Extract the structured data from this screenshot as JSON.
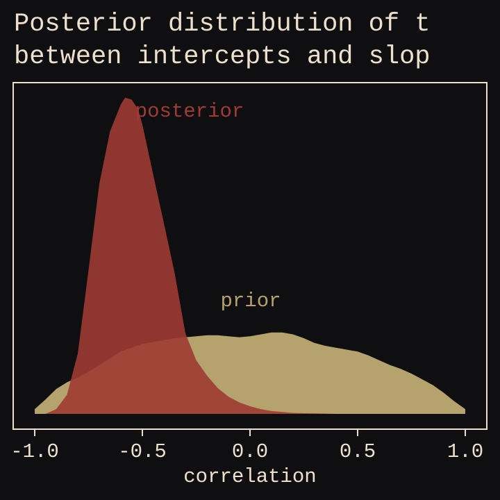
{
  "chart_data": {
    "type": "area",
    "title_lines": [
      "Posterior distribution of t",
      "between intercepts and slop"
    ],
    "xlabel": "correlation",
    "ylabel": "",
    "xlim": [
      -1.0,
      1.0
    ],
    "ylim": [
      0,
      3.3
    ],
    "xticks": [
      -1.0,
      -0.5,
      0.0,
      0.5,
      1.0
    ],
    "xtick_labels": [
      "-1.0",
      "-0.5",
      "0.0",
      "0.5",
      "1.0"
    ],
    "grid": false,
    "series": [
      {
        "name": "prior",
        "color": "#b5a26c",
        "x": [
          -1.0,
          -0.95,
          -0.9,
          -0.85,
          -0.8,
          -0.75,
          -0.7,
          -0.65,
          -0.6,
          -0.55,
          -0.5,
          -0.45,
          -0.4,
          -0.35,
          -0.3,
          -0.25,
          -0.2,
          -0.15,
          -0.1,
          -0.05,
          0.0,
          0.05,
          0.1,
          0.15,
          0.2,
          0.25,
          0.3,
          0.35,
          0.4,
          0.45,
          0.5,
          0.55,
          0.6,
          0.65,
          0.7,
          0.75,
          0.8,
          0.85,
          0.9,
          0.95,
          1.0
        ],
        "y": [
          0.05,
          0.15,
          0.26,
          0.33,
          0.38,
          0.44,
          0.51,
          0.58,
          0.65,
          0.69,
          0.73,
          0.75,
          0.77,
          0.79,
          0.8,
          0.81,
          0.82,
          0.82,
          0.81,
          0.8,
          0.81,
          0.83,
          0.85,
          0.85,
          0.83,
          0.79,
          0.74,
          0.71,
          0.69,
          0.67,
          0.65,
          0.61,
          0.56,
          0.51,
          0.47,
          0.42,
          0.36,
          0.3,
          0.22,
          0.13,
          0.05
        ]
      },
      {
        "name": "posterior",
        "color": "#9f3b34",
        "x": [
          -1.0,
          -0.95,
          -0.9,
          -0.85,
          -0.8,
          -0.75,
          -0.7,
          -0.65,
          -0.6,
          -0.58,
          -0.55,
          -0.52,
          -0.5,
          -0.45,
          -0.4,
          -0.35,
          -0.3,
          -0.25,
          -0.2,
          -0.15,
          -0.1,
          -0.05,
          0.0,
          0.05,
          0.1,
          0.15,
          0.2,
          0.3,
          0.4,
          0.5,
          0.6,
          0.8,
          1.0
        ],
        "y": [
          0.0,
          0.0,
          0.05,
          0.2,
          0.63,
          1.5,
          2.4,
          2.95,
          3.23,
          3.3,
          3.28,
          3.18,
          3.02,
          2.5,
          1.99,
          1.47,
          0.84,
          0.56,
          0.4,
          0.27,
          0.18,
          0.12,
          0.08,
          0.05,
          0.03,
          0.02,
          0.01,
          0.005,
          0.0,
          0.0,
          0.0,
          0.0,
          0.0
        ]
      }
    ]
  }
}
